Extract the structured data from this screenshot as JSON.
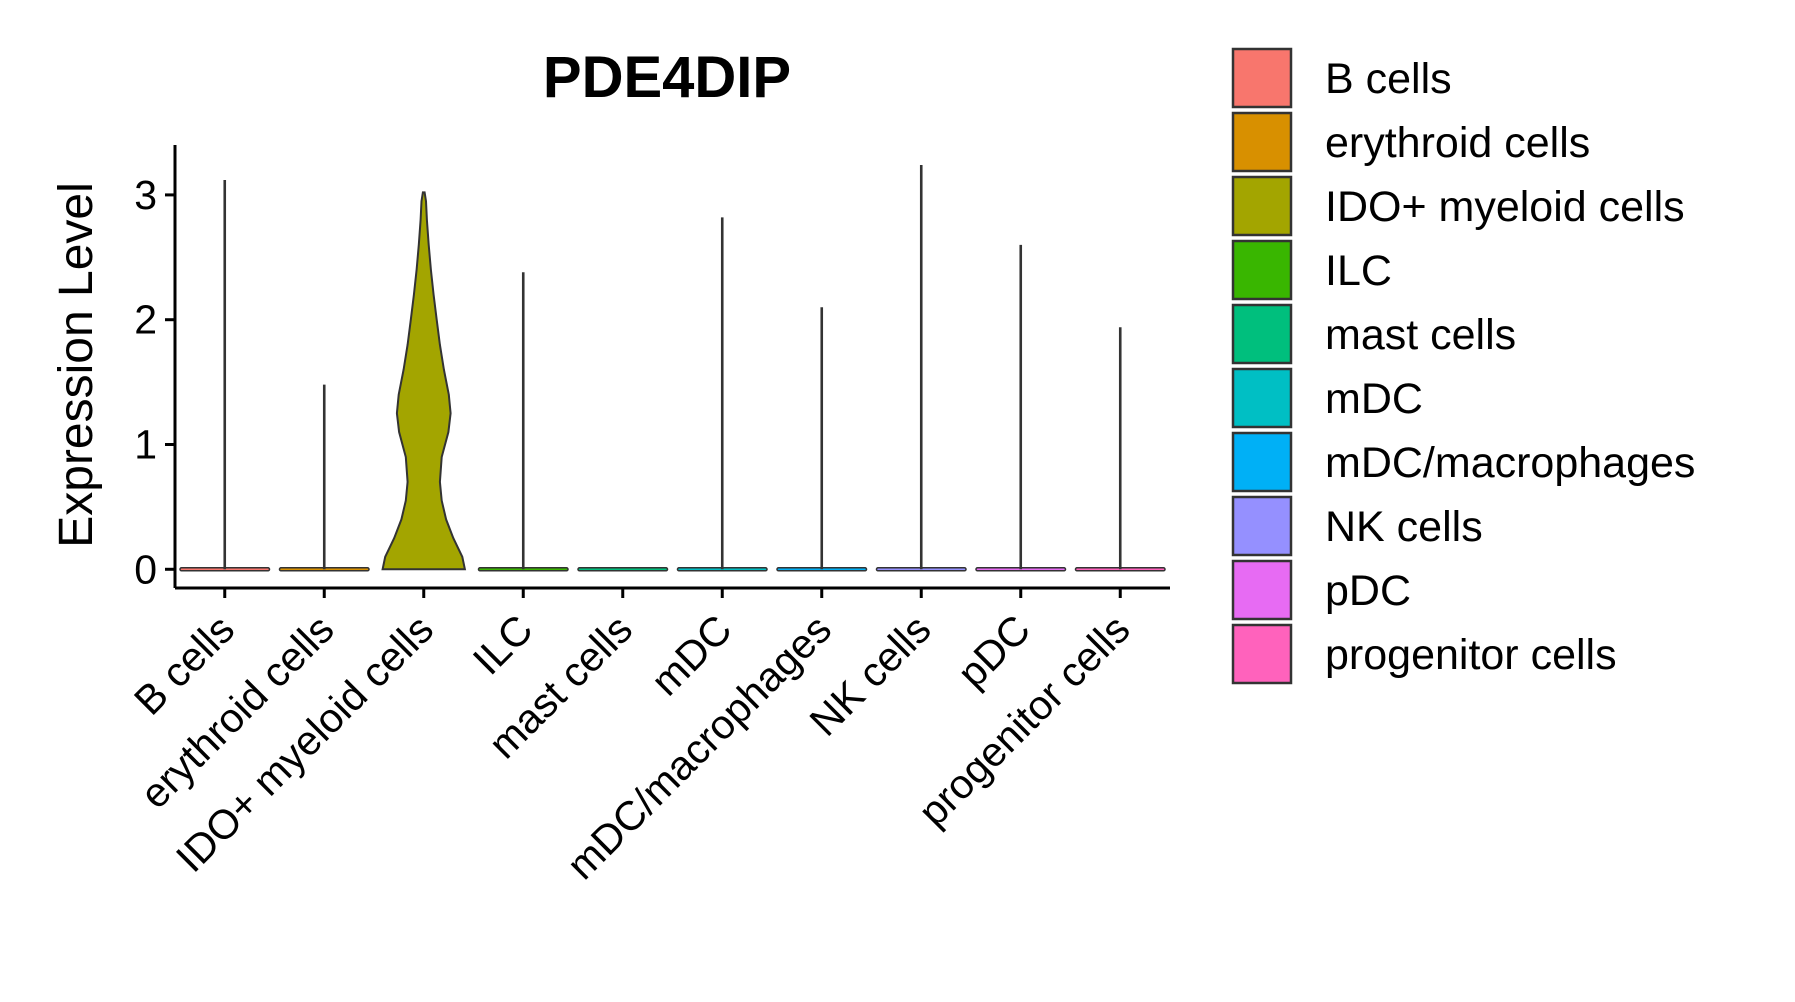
{
  "chart_data": {
    "type": "violin",
    "title": "PDE4DIP",
    "xlabel": "",
    "ylabel": "Expression Level",
    "ylim": [
      -0.15,
      3.4
    ],
    "yticks": [
      0,
      1,
      2,
      3
    ],
    "categories": [
      "B cells",
      "erythroid cells",
      "IDO+ myeloid cells",
      "ILC",
      "mast cells",
      "mDC",
      "mDC/macrophages",
      "NK cells",
      "pDC",
      "progenitor cells"
    ],
    "colors": [
      "#F8766D",
      "#D89000",
      "#A3A500",
      "#39B600",
      "#00BF7D",
      "#00BFC4",
      "#00B0F6",
      "#9590FF",
      "#E76BF3",
      "#FF62BC"
    ],
    "max_values": [
      3.12,
      1.48,
      3.02,
      2.38,
      0.0,
      2.82,
      2.1,
      3.24,
      2.6,
      1.94
    ],
    "ido_density": {
      "y": [
        0.0,
        0.1,
        0.25,
        0.4,
        0.55,
        0.7,
        0.9,
        1.1,
        1.25,
        1.4,
        1.6,
        1.8,
        2.0,
        2.2,
        2.4,
        2.6,
        2.8,
        2.95,
        3.02
      ],
      "half_width": [
        0.92,
        0.86,
        0.66,
        0.5,
        0.4,
        0.36,
        0.4,
        0.55,
        0.6,
        0.56,
        0.45,
        0.36,
        0.29,
        0.22,
        0.16,
        0.11,
        0.07,
        0.05,
        0.02
      ]
    },
    "legend": {
      "position": "right",
      "entries": [
        "B cells",
        "erythroid cells",
        "IDO+ myeloid cells",
        "ILC",
        "mast cells",
        "mDC",
        "mDC/macrophages",
        "NK cells",
        "pDC",
        "progenitor cells"
      ]
    }
  }
}
